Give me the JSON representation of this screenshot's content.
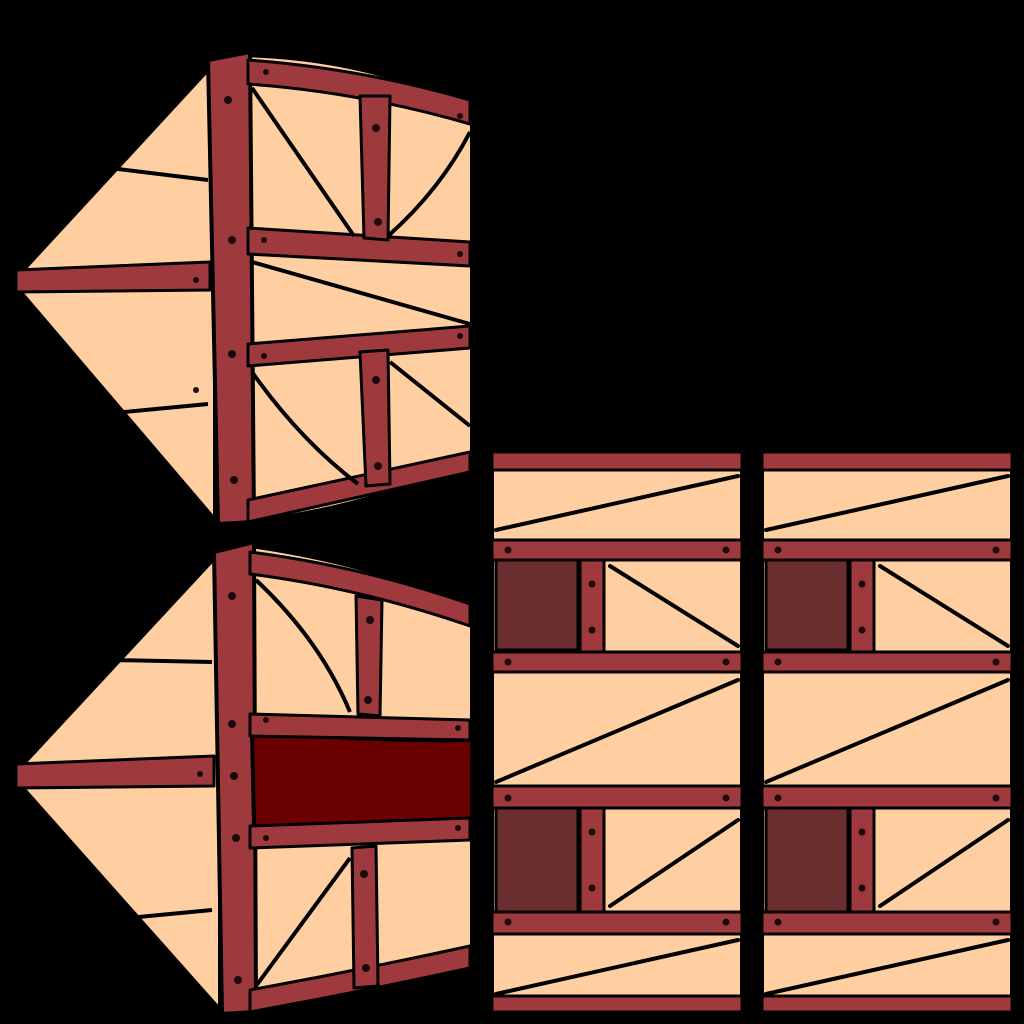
{
  "atlas": {
    "background_color": "#000000",
    "colors": {
      "plaster": "#FFCFA1",
      "timber": "#9E3A3D",
      "ink": "#000000",
      "dark_panel": "#6B2F2F",
      "deep_red_panel": "#6A0000",
      "nail": "#1A0A0A"
    },
    "sprites": [
      {
        "id": "gable-wall-upper",
        "kind": "gable",
        "variant": "plain"
      },
      {
        "id": "gable-wall-lower",
        "kind": "gable",
        "variant": "red-window"
      },
      {
        "id": "wall-strip-left",
        "kind": "strip",
        "variant": "dark-windows"
      },
      {
        "id": "wall-strip-right",
        "kind": "strip",
        "variant": "dark-windows"
      }
    ]
  }
}
